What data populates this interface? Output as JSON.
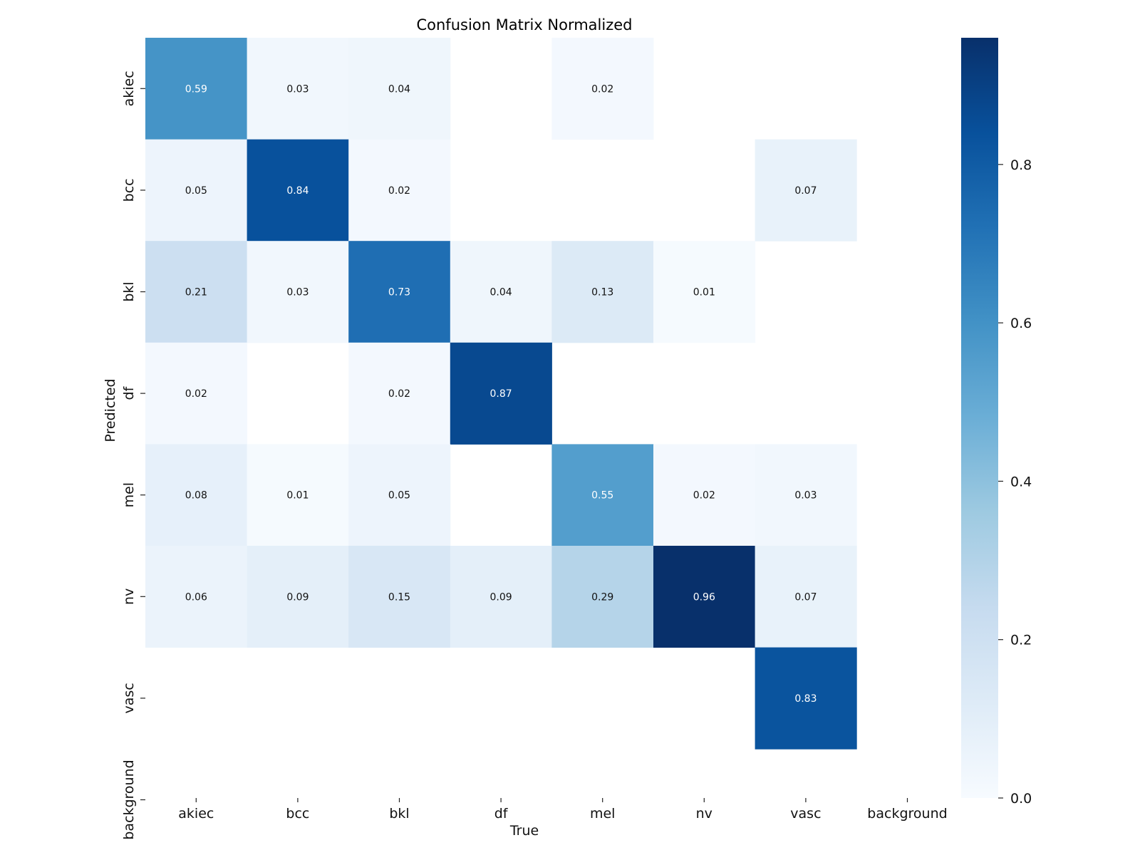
{
  "chart_data": {
    "type": "heatmap",
    "title": "Confusion Matrix Normalized",
    "xlabel": "True",
    "ylabel": "Predicted",
    "x_categories": [
      "akiec",
      "bcc",
      "bkl",
      "df",
      "mel",
      "nv",
      "vasc",
      "background"
    ],
    "y_categories": [
      "akiec",
      "bcc",
      "bkl",
      "df",
      "mel",
      "nv",
      "vasc",
      "background"
    ],
    "values": [
      [
        0.59,
        0.03,
        0.04,
        null,
        0.02,
        null,
        null,
        null
      ],
      [
        0.05,
        0.84,
        0.02,
        null,
        null,
        null,
        0.07,
        null
      ],
      [
        0.21,
        0.03,
        0.73,
        0.04,
        0.13,
        0.01,
        null,
        null
      ],
      [
        0.02,
        null,
        0.02,
        0.87,
        null,
        null,
        null,
        null
      ],
      [
        0.08,
        0.01,
        0.05,
        null,
        0.55,
        0.02,
        0.03,
        null
      ],
      [
        0.06,
        0.09,
        0.15,
        0.09,
        0.29,
        0.96,
        0.07,
        null
      ],
      [
        null,
        null,
        null,
        null,
        null,
        null,
        0.83,
        null
      ],
      [
        null,
        null,
        null,
        null,
        null,
        null,
        null,
        null
      ]
    ],
    "colormap": "Blues",
    "colorbar": {
      "range": [
        0.0,
        0.96
      ],
      "ticks": [
        0.0,
        0.2,
        0.4,
        0.6,
        0.8
      ],
      "tick_labels": [
        "0.0",
        "0.2",
        "0.4",
        "0.6",
        "0.8"
      ]
    }
  }
}
